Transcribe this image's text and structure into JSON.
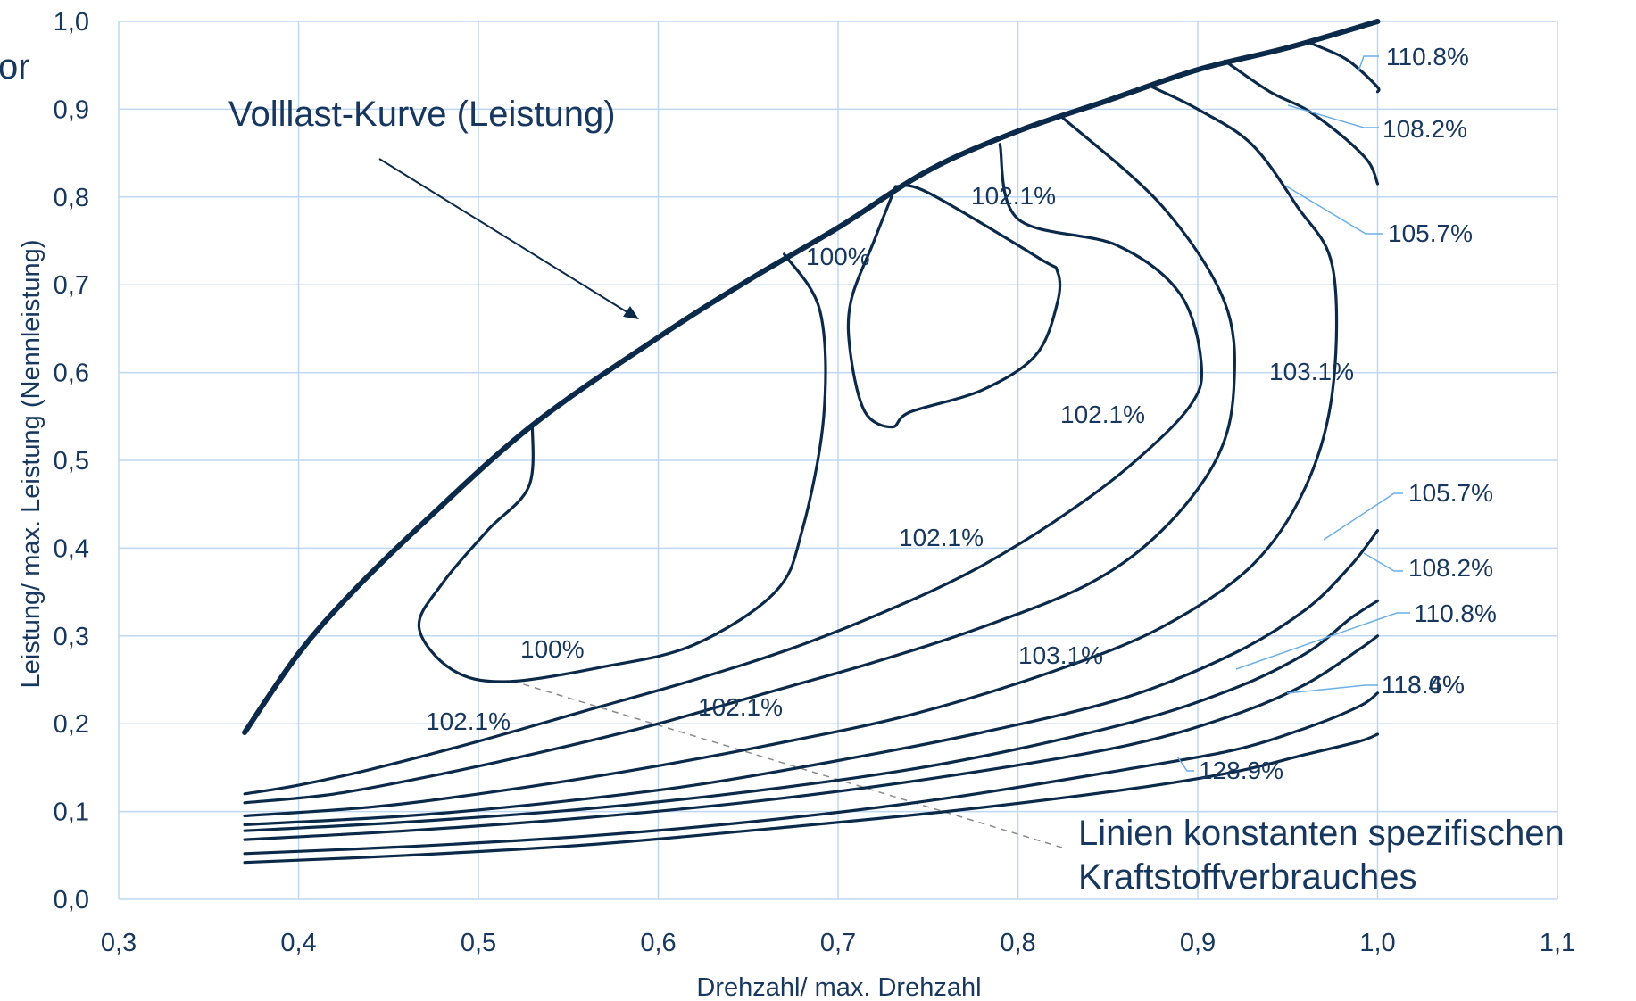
{
  "chart_data": {
    "type": "line",
    "title": "",
    "xlabel": "Drehzahl/ max. Drehzahl",
    "ylabel": "Leistung/ max. Leistung (Nennleistung)",
    "xlim": [
      0.3,
      1.1
    ],
    "ylim": [
      0.0,
      1.0
    ],
    "grid": true,
    "x_ticks": [
      "0,3",
      "0,4",
      "0,5",
      "0,6",
      "0,7",
      "0,8",
      "0,9",
      "1,0",
      "1,1"
    ],
    "y_ticks": [
      "0,0",
      "0,1",
      "0,2",
      "0,3",
      "0,4",
      "0,5",
      "0,6",
      "0,7",
      "0,8",
      "0,9",
      "1,0"
    ],
    "clipped_text": "or",
    "annotations": [
      {
        "text": "Volllast-Kurve (Leistung)"
      },
      {
        "text": "Linien konstanten spezifischen"
      },
      {
        "text": "Kraftstoffverbrauches"
      }
    ],
    "contour_labels": [
      "110.8%",
      "108.2%",
      "105.7%",
      "102.1%",
      "100%",
      "102.1%",
      "103.1%",
      "102.1%",
      "102.1%",
      "100%",
      "102.1%",
      "103.1%",
      "105.7%",
      "108.2%",
      "110.8%",
      "113.4%",
      "118.6%",
      "128.9%"
    ],
    "colors": {
      "lines": "#0b2a4a",
      "grid": "#bfd7f2",
      "leader": "#6aaee8",
      "text": "#17375e"
    },
    "series": [
      {
        "name": "Volllast-Kurve (Leistung)",
        "points": [
          [
            0.37,
            0.19
          ],
          [
            0.4,
            0.28
          ],
          [
            0.43,
            0.35
          ],
          [
            0.47,
            0.43
          ],
          [
            0.53,
            0.54
          ],
          [
            0.6,
            0.64
          ],
          [
            0.65,
            0.705
          ],
          [
            0.7,
            0.765
          ],
          [
            0.75,
            0.83
          ],
          [
            0.8,
            0.875
          ],
          [
            0.85,
            0.91
          ],
          [
            0.9,
            0.945
          ],
          [
            0.95,
            0.97
          ],
          [
            1.0,
            1.0
          ]
        ]
      },
      {
        "points": [
          [
            0.53,
            0.54
          ],
          [
            0.528,
            0.47
          ],
          [
            0.505,
            0.42
          ],
          [
            0.48,
            0.36
          ],
          [
            0.467,
            0.31
          ],
          [
            0.485,
            0.262
          ],
          [
            0.515,
            0.248
          ],
          [
            0.57,
            0.265
          ],
          [
            0.62,
            0.29
          ],
          [
            0.665,
            0.35
          ],
          [
            0.68,
            0.42
          ],
          [
            0.692,
            0.55
          ],
          [
            0.69,
            0.67
          ],
          [
            0.67,
            0.735
          ]
        ]
      },
      {
        "points": [
          [
            0.732,
            0.812
          ],
          [
            0.72,
            0.75
          ],
          [
            0.707,
            0.68
          ],
          [
            0.707,
            0.62
          ],
          [
            0.715,
            0.555
          ],
          [
            0.73,
            0.538
          ],
          [
            0.74,
            0.555
          ],
          [
            0.78,
            0.58
          ],
          [
            0.81,
            0.62
          ],
          [
            0.822,
            0.68
          ],
          [
            0.822,
            0.715
          ],
          [
            0.812,
            0.73
          ],
          [
            0.75,
            0.805
          ],
          [
            0.732,
            0.812
          ]
        ]
      },
      {
        "points": [
          [
            0.37,
            0.12
          ],
          [
            0.4,
            0.13
          ],
          [
            0.44,
            0.148
          ],
          [
            0.5,
            0.18
          ],
          [
            0.56,
            0.215
          ],
          [
            0.62,
            0.25
          ],
          [
            0.68,
            0.29
          ],
          [
            0.74,
            0.34
          ],
          [
            0.78,
            0.38
          ],
          [
            0.82,
            0.43
          ],
          [
            0.86,
            0.49
          ],
          [
            0.895,
            0.56
          ],
          [
            0.902,
            0.61
          ],
          [
            0.89,
            0.69
          ],
          [
            0.855,
            0.745
          ],
          [
            0.8,
            0.775
          ],
          [
            0.79,
            0.86
          ]
        ]
      },
      {
        "points": [
          [
            0.37,
            0.11
          ],
          [
            0.42,
            0.12
          ],
          [
            0.48,
            0.143
          ],
          [
            0.54,
            0.17
          ],
          [
            0.6,
            0.2
          ],
          [
            0.66,
            0.235
          ],
          [
            0.72,
            0.27
          ],
          [
            0.78,
            0.31
          ],
          [
            0.84,
            0.36
          ],
          [
            0.88,
            0.42
          ],
          [
            0.91,
            0.5
          ],
          [
            0.92,
            0.58
          ],
          [
            0.915,
            0.68
          ],
          [
            0.88,
            0.79
          ],
          [
            0.825,
            0.89
          ]
        ]
      },
      {
        "points": [
          [
            0.37,
            0.095
          ],
          [
            0.44,
            0.105
          ],
          [
            0.5,
            0.12
          ],
          [
            0.58,
            0.145
          ],
          [
            0.66,
            0.175
          ],
          [
            0.74,
            0.21
          ],
          [
            0.82,
            0.26
          ],
          [
            0.88,
            0.31
          ],
          [
            0.93,
            0.38
          ],
          [
            0.96,
            0.47
          ],
          [
            0.975,
            0.58
          ],
          [
            0.975,
            0.72
          ],
          [
            0.955,
            0.79
          ],
          [
            0.93,
            0.86
          ],
          [
            0.9,
            0.9
          ],
          [
            0.875,
            0.925
          ]
        ]
      },
      {
        "points": [
          [
            0.37,
            0.085
          ],
          [
            0.46,
            0.095
          ],
          [
            0.54,
            0.11
          ],
          [
            0.62,
            0.13
          ],
          [
            0.7,
            0.158
          ],
          [
            0.78,
            0.19
          ],
          [
            0.86,
            0.23
          ],
          [
            0.92,
            0.28
          ],
          [
            0.96,
            0.33
          ],
          [
            0.985,
            0.38
          ],
          [
            1.0,
            0.42
          ]
        ]
      },
      {
        "points": [
          [
            0.915,
            0.955
          ],
          [
            0.94,
            0.92
          ],
          [
            0.96,
            0.9
          ],
          [
            0.98,
            0.87
          ],
          [
            0.995,
            0.84
          ],
          [
            1.0,
            0.815
          ]
        ]
      },
      {
        "points": [
          [
            0.37,
            0.078
          ],
          [
            0.46,
            0.088
          ],
          [
            0.56,
            0.103
          ],
          [
            0.66,
            0.125
          ],
          [
            0.76,
            0.155
          ],
          [
            0.86,
            0.2
          ],
          [
            0.92,
            0.24
          ],
          [
            0.96,
            0.28
          ],
          [
            0.985,
            0.32
          ],
          [
            1.0,
            0.34
          ]
        ]
      },
      {
        "points": [
          [
            0.963,
            0.975
          ],
          [
            0.98,
            0.96
          ],
          [
            0.99,
            0.945
          ],
          [
            1.0,
            0.925
          ],
          [
            1.0,
            0.92
          ]
        ]
      },
      {
        "points": [
          [
            0.37,
            0.068
          ],
          [
            0.46,
            0.078
          ],
          [
            0.56,
            0.093
          ],
          [
            0.66,
            0.113
          ],
          [
            0.76,
            0.14
          ],
          [
            0.86,
            0.175
          ],
          [
            0.92,
            0.21
          ],
          [
            0.96,
            0.245
          ],
          [
            0.99,
            0.285
          ],
          [
            1.0,
            0.3
          ]
        ]
      },
      {
        "points": [
          [
            0.37,
            0.052
          ],
          [
            0.46,
            0.06
          ],
          [
            0.56,
            0.072
          ],
          [
            0.66,
            0.09
          ],
          [
            0.76,
            0.115
          ],
          [
            0.86,
            0.148
          ],
          [
            0.92,
            0.17
          ],
          [
            0.96,
            0.195
          ],
          [
            0.99,
            0.22
          ],
          [
            1.0,
            0.235
          ]
        ]
      },
      {
        "points": [
          [
            0.37,
            0.042
          ],
          [
            0.46,
            0.05
          ],
          [
            0.56,
            0.062
          ],
          [
            0.66,
            0.08
          ],
          [
            0.76,
            0.1
          ],
          [
            0.86,
            0.125
          ],
          [
            0.92,
            0.145
          ],
          [
            0.96,
            0.165
          ],
          [
            0.99,
            0.18
          ],
          [
            1.0,
            0.188
          ]
        ]
      }
    ]
  }
}
